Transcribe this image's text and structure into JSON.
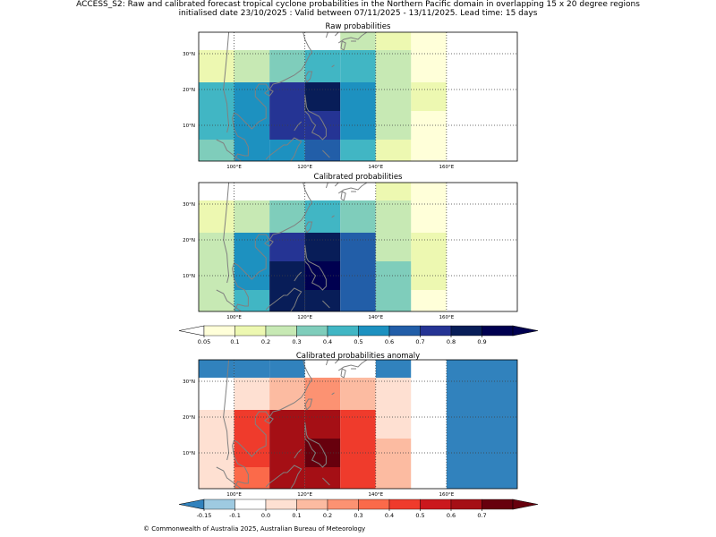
{
  "header": {
    "line1": "ACCESS_S2: Raw and calibrated forecast tropical cyclone probabilities in the Northern Pacific domain in overlapping 15 x 20 degree regions",
    "line2": "initialised date 23/10/2025 :  Valid between 07/11/2025 - 13/11/2025. Lead time: 15 days"
  },
  "footer": {
    "text": "© Commonwealth of Australia 2025, Australian Bureau of Meteorology"
  },
  "colors": {
    "prob_bins": [
      "#ffffd9",
      "#edf8b1",
      "#c7e9b4",
      "#7fcdbb",
      "#41b6c4",
      "#1d91c0",
      "#225ea8",
      "#253494",
      "#081d58",
      "#000050"
    ],
    "prob_under": "#ffffff",
    "anom_bins": [
      "#9ecae1",
      "#ffffff",
      "#fee0d2",
      "#fcbba1",
      "#fc9272",
      "#fb6a4a",
      "#ef3b2c",
      "#cb181d",
      "#a50f15",
      "#67000d"
    ],
    "anom_under": "#3182bd",
    "coastline": "#808080",
    "gridline": "#404040"
  },
  "chart_data": [
    {
      "type": "heatmap",
      "name": "raw",
      "title": "Raw probabilities",
      "lon_range": [
        90,
        180
      ],
      "lat_range": [
        0,
        36
      ],
      "x_ticks": [
        {
          "value": 100,
          "label": "100°E"
        },
        {
          "value": 120,
          "label": "120°E"
        },
        {
          "value": 140,
          "label": "140°E"
        },
        {
          "value": 160,
          "label": "160°E"
        }
      ],
      "y_ticks": [
        {
          "value": 10,
          "label": "10°N"
        },
        {
          "value": 20,
          "label": "20°N"
        },
        {
          "value": 30,
          "label": "30°N"
        }
      ],
      "cells": [
        {
          "lon0": 90,
          "lon1": 100,
          "lat0": 0,
          "lat1": 6,
          "value": 0.32
        },
        {
          "lon0": 90,
          "lon1": 100,
          "lat0": 6,
          "lat1": 22,
          "value": 0.42
        },
        {
          "lon0": 90,
          "lon1": 100,
          "lat0": 22,
          "lat1": 31,
          "value": 0.12
        },
        {
          "lon0": 90,
          "lon1": 100,
          "lat0": 31,
          "lat1": 36,
          "value": 0.02
        },
        {
          "lon0": 100,
          "lon1": 110,
          "lat0": 0,
          "lat1": 22,
          "value": 0.52
        },
        {
          "lon0": 100,
          "lon1": 110,
          "lat0": 22,
          "lat1": 31,
          "value": 0.22
        },
        {
          "lon0": 100,
          "lon1": 110,
          "lat0": 31,
          "lat1": 36,
          "value": 0.02
        },
        {
          "lon0": 110,
          "lon1": 120,
          "lat0": 0,
          "lat1": 6,
          "value": 0.52
        },
        {
          "lon0": 110,
          "lon1": 120,
          "lat0": 6,
          "lat1": 22,
          "value": 0.72
        },
        {
          "lon0": 110,
          "lon1": 120,
          "lat0": 22,
          "lat1": 31,
          "value": 0.32
        },
        {
          "lon0": 110,
          "lon1": 120,
          "lat0": 31,
          "lat1": 36,
          "value": 0.02
        },
        {
          "lon0": 120,
          "lon1": 130,
          "lat0": 0,
          "lat1": 6,
          "value": 0.62
        },
        {
          "lon0": 120,
          "lon1": 130,
          "lat0": 6,
          "lat1": 14,
          "value": 0.72
        },
        {
          "lon0": 120,
          "lon1": 130,
          "lat0": 14,
          "lat1": 22,
          "value": 0.82
        },
        {
          "lon0": 120,
          "lon1": 130,
          "lat0": 22,
          "lat1": 31,
          "value": 0.42
        },
        {
          "lon0": 120,
          "lon1": 130,
          "lat0": 31,
          "lat1": 36,
          "value": 0.02
        },
        {
          "lon0": 130,
          "lon1": 140,
          "lat0": 0,
          "lat1": 6,
          "value": 0.42
        },
        {
          "lon0": 130,
          "lon1": 140,
          "lat0": 6,
          "lat1": 22,
          "value": 0.52
        },
        {
          "lon0": 130,
          "lon1": 140,
          "lat0": 22,
          "lat1": 31,
          "value": 0.42
        },
        {
          "lon0": 130,
          "lon1": 140,
          "lat0": 31,
          "lat1": 36,
          "value": 0.22
        },
        {
          "lon0": 140,
          "lon1": 150,
          "lat0": 0,
          "lat1": 6,
          "value": 0.12
        },
        {
          "lon0": 140,
          "lon1": 150,
          "lat0": 6,
          "lat1": 31,
          "value": 0.22
        },
        {
          "lon0": 140,
          "lon1": 150,
          "lat0": 31,
          "lat1": 36,
          "value": 0.12
        },
        {
          "lon0": 150,
          "lon1": 160,
          "lat0": 0,
          "lat1": 14,
          "value": 0.07
        },
        {
          "lon0": 150,
          "lon1": 160,
          "lat0": 14,
          "lat1": 22,
          "value": 0.12
        },
        {
          "lon0": 150,
          "lon1": 160,
          "lat0": 22,
          "lat1": 36,
          "value": 0.07
        }
      ]
    },
    {
      "type": "heatmap",
      "name": "calibrated",
      "title": "Calibrated probabilities",
      "lon_range": [
        90,
        180
      ],
      "lat_range": [
        0,
        36
      ],
      "x_ticks": [
        {
          "value": 100,
          "label": "100°E"
        },
        {
          "value": 120,
          "label": "120°E"
        },
        {
          "value": 140,
          "label": "140°E"
        },
        {
          "value": 160,
          "label": "160°E"
        }
      ],
      "y_ticks": [
        {
          "value": 10,
          "label": "10°N"
        },
        {
          "value": 20,
          "label": "20°N"
        },
        {
          "value": 30,
          "label": "30°N"
        }
      ],
      "cells": [
        {
          "lon0": 90,
          "lon1": 100,
          "lat0": 0,
          "lat1": 22,
          "value": 0.22
        },
        {
          "lon0": 90,
          "lon1": 100,
          "lat0": 22,
          "lat1": 31,
          "value": 0.12
        },
        {
          "lon0": 90,
          "lon1": 100,
          "lat0": 31,
          "lat1": 36,
          "value": 0.02
        },
        {
          "lon0": 100,
          "lon1": 110,
          "lat0": 0,
          "lat1": 6,
          "value": 0.42
        },
        {
          "lon0": 100,
          "lon1": 110,
          "lat0": 6,
          "lat1": 22,
          "value": 0.52
        },
        {
          "lon0": 100,
          "lon1": 110,
          "lat0": 22,
          "lat1": 31,
          "value": 0.22
        },
        {
          "lon0": 100,
          "lon1": 110,
          "lat0": 31,
          "lat1": 36,
          "value": 0.02
        },
        {
          "lon0": 110,
          "lon1": 120,
          "lat0": 0,
          "lat1": 14,
          "value": 0.82
        },
        {
          "lon0": 110,
          "lon1": 120,
          "lat0": 14,
          "lat1": 22,
          "value": 0.72
        },
        {
          "lon0": 110,
          "lon1": 120,
          "lat0": 22,
          "lat1": 31,
          "value": 0.32
        },
        {
          "lon0": 110,
          "lon1": 120,
          "lat0": 31,
          "lat1": 36,
          "value": 0.02
        },
        {
          "lon0": 120,
          "lon1": 130,
          "lat0": 0,
          "lat1": 6,
          "value": 0.82
        },
        {
          "lon0": 120,
          "lon1": 130,
          "lat0": 6,
          "lat1": 14,
          "value": 0.95
        },
        {
          "lon0": 120,
          "lon1": 130,
          "lat0": 14,
          "lat1": 22,
          "value": 0.82
        },
        {
          "lon0": 120,
          "lon1": 130,
          "lat0": 22,
          "lat1": 31,
          "value": 0.42
        },
        {
          "lon0": 120,
          "lon1": 130,
          "lat0": 31,
          "lat1": 36,
          "value": 0.02
        },
        {
          "lon0": 130,
          "lon1": 140,
          "lat0": 0,
          "lat1": 22,
          "value": 0.62
        },
        {
          "lon0": 130,
          "lon1": 140,
          "lat0": 22,
          "lat1": 31,
          "value": 0.32
        },
        {
          "lon0": 130,
          "lon1": 140,
          "lat0": 31,
          "lat1": 36,
          "value": 0.02
        },
        {
          "lon0": 140,
          "lon1": 150,
          "lat0": 0,
          "lat1": 14,
          "value": 0.32
        },
        {
          "lon0": 140,
          "lon1": 150,
          "lat0": 14,
          "lat1": 31,
          "value": 0.22
        },
        {
          "lon0": 140,
          "lon1": 150,
          "lat0": 31,
          "lat1": 36,
          "value": 0.12
        },
        {
          "lon0": 150,
          "lon1": 160,
          "lat0": 0,
          "lat1": 6,
          "value": 0.07
        },
        {
          "lon0": 150,
          "lon1": 160,
          "lat0": 6,
          "lat1": 22,
          "value": 0.12
        },
        {
          "lon0": 150,
          "lon1": 160,
          "lat0": 22,
          "lat1": 36,
          "value": 0.07
        }
      ]
    },
    {
      "type": "heatmap",
      "name": "anomaly",
      "title": "Calibrated probabilities anomaly",
      "lon_range": [
        90,
        180
      ],
      "lat_range": [
        0,
        36
      ],
      "x_ticks": [
        {
          "value": 100,
          "label": "100°E"
        },
        {
          "value": 120,
          "label": "120°E"
        },
        {
          "value": 140,
          "label": "140°E"
        },
        {
          "value": 160,
          "label": "160°E"
        }
      ],
      "y_ticks": [
        {
          "value": 10,
          "label": "10°N"
        },
        {
          "value": 20,
          "label": "20°N"
        },
        {
          "value": 30,
          "label": "30°N"
        }
      ],
      "cells": [
        {
          "lon0": 90,
          "lon1": 100,
          "lat0": 0,
          "lat1": 22,
          "value": 0.05
        },
        {
          "lon0": 90,
          "lon1": 100,
          "lat0": 22,
          "lat1": 31,
          "value": -0.05
        },
        {
          "lon0": 90,
          "lon1": 100,
          "lat0": 31,
          "lat1": 36,
          "value": -0.2
        },
        {
          "lon0": 100,
          "lon1": 110,
          "lat0": 0,
          "lat1": 6,
          "value": 0.35
        },
        {
          "lon0": 100,
          "lon1": 110,
          "lat0": 6,
          "lat1": 22,
          "value": 0.45
        },
        {
          "lon0": 100,
          "lon1": 110,
          "lat0": 22,
          "lat1": 31,
          "value": 0.05
        },
        {
          "lon0": 100,
          "lon1": 110,
          "lat0": 31,
          "lat1": 36,
          "value": -0.2
        },
        {
          "lon0": 110,
          "lon1": 120,
          "lat0": 0,
          "lat1": 22,
          "value": 0.65
        },
        {
          "lon0": 110,
          "lon1": 120,
          "lat0": 22,
          "lat1": 31,
          "value": 0.15
        },
        {
          "lon0": 110,
          "lon1": 120,
          "lat0": 31,
          "lat1": 36,
          "value": -0.2
        },
        {
          "lon0": 120,
          "lon1": 130,
          "lat0": 0,
          "lat1": 6,
          "value": 0.65
        },
        {
          "lon0": 120,
          "lon1": 130,
          "lat0": 6,
          "lat1": 14,
          "value": 0.75
        },
        {
          "lon0": 120,
          "lon1": 130,
          "lat0": 14,
          "lat1": 22,
          "value": 0.65
        },
        {
          "lon0": 120,
          "lon1": 130,
          "lat0": 22,
          "lat1": 31,
          "value": 0.25
        },
        {
          "lon0": 120,
          "lon1": 130,
          "lat0": 31,
          "lat1": 36,
          "value": -0.05
        },
        {
          "lon0": 130,
          "lon1": 140,
          "lat0": 0,
          "lat1": 22,
          "value": 0.45
        },
        {
          "lon0": 130,
          "lon1": 140,
          "lat0": 22,
          "lat1": 31,
          "value": 0.15
        },
        {
          "lon0": 130,
          "lon1": 140,
          "lat0": 31,
          "lat1": 36,
          "value": -0.05
        },
        {
          "lon0": 140,
          "lon1": 150,
          "lat0": 0,
          "lat1": 14,
          "value": 0.15
        },
        {
          "lon0": 140,
          "lon1": 150,
          "lat0": 14,
          "lat1": 31,
          "value": 0.05
        },
        {
          "lon0": 140,
          "lon1": 150,
          "lat0": 31,
          "lat1": 36,
          "value": -0.2
        },
        {
          "lon0": 150,
          "lon1": 160,
          "lat0": 0,
          "lat1": 6,
          "value": -0.1
        },
        {
          "lon0": 150,
          "lon1": 160,
          "lat0": 6,
          "lat1": 22,
          "value": -0.05
        },
        {
          "lon0": 150,
          "lon1": 160,
          "lat0": 22,
          "lat1": 31,
          "value": -0.1
        },
        {
          "lon0": 150,
          "lon1": 160,
          "lat0": 31,
          "lat1": 36,
          "value": -0.1
        },
        {
          "lon0": 160,
          "lon1": 180,
          "lat0": 0,
          "lat1": 36,
          "value": -0.2
        }
      ]
    },
    {
      "type": "colorbar",
      "name": "prob_colorbar",
      "ticks": [
        {
          "value": 0.05,
          "label": "0.05"
        },
        {
          "value": 0.1,
          "label": "0.1"
        },
        {
          "value": 0.2,
          "label": "0.2"
        },
        {
          "value": 0.3,
          "label": "0.3"
        },
        {
          "value": 0.4,
          "label": "0.4"
        },
        {
          "value": 0.5,
          "label": "0.5"
        },
        {
          "value": 0.6,
          "label": "0.6"
        },
        {
          "value": 0.7,
          "label": "0.7"
        },
        {
          "value": 0.8,
          "label": "0.8"
        },
        {
          "value": 0.9,
          "label": "0.9"
        }
      ]
    },
    {
      "type": "colorbar",
      "name": "anom_colorbar",
      "ticks": [
        {
          "value": -0.15,
          "label": "-0.15"
        },
        {
          "value": -0.1,
          "label": "-0.1"
        },
        {
          "value": 0.0,
          "label": "0.0"
        },
        {
          "value": 0.1,
          "label": "0.1"
        },
        {
          "value": 0.2,
          "label": "0.2"
        },
        {
          "value": 0.3,
          "label": "0.3"
        },
        {
          "value": 0.4,
          "label": "0.4"
        },
        {
          "value": 0.5,
          "label": "0.5"
        },
        {
          "value": 0.6,
          "label": "0.6"
        },
        {
          "value": 0.7,
          "label": "0.7"
        }
      ]
    }
  ]
}
